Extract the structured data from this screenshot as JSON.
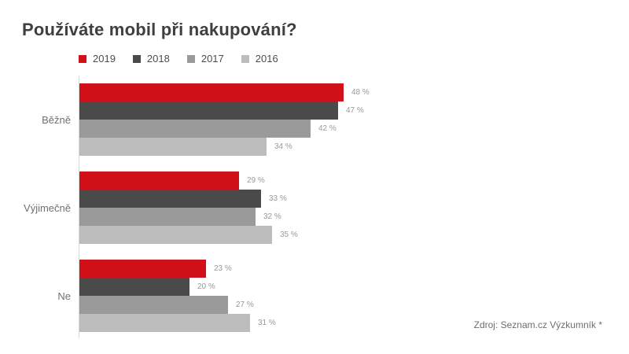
{
  "title": "Používáte mobil při nakupování?",
  "source": "Zdroj: Seznam.cz Výzkumník *",
  "chart_data": {
    "type": "bar",
    "orientation": "horizontal",
    "title": "Používáte mobil při nakupování?",
    "categories": [
      "Běžně",
      "Výjimečně",
      "Ne"
    ],
    "series": [
      {
        "name": "2019",
        "color": "#d01117",
        "values": [
          48,
          29,
          23
        ]
      },
      {
        "name": "2018",
        "color": "#4a4a4a",
        "values": [
          47,
          33,
          20
        ]
      },
      {
        "name": "2017",
        "color": "#9a9a9a",
        "values": [
          42,
          32,
          27
        ]
      },
      {
        "name": "2016",
        "color": "#bcbcbc",
        "values": [
          34,
          35,
          31
        ]
      }
    ],
    "value_suffix": " %",
    "xlim": [
      0,
      100
    ],
    "grid": false,
    "legend_position": "top",
    "annotation": "Zdroj: Seznam.cz Výzkumník *"
  }
}
